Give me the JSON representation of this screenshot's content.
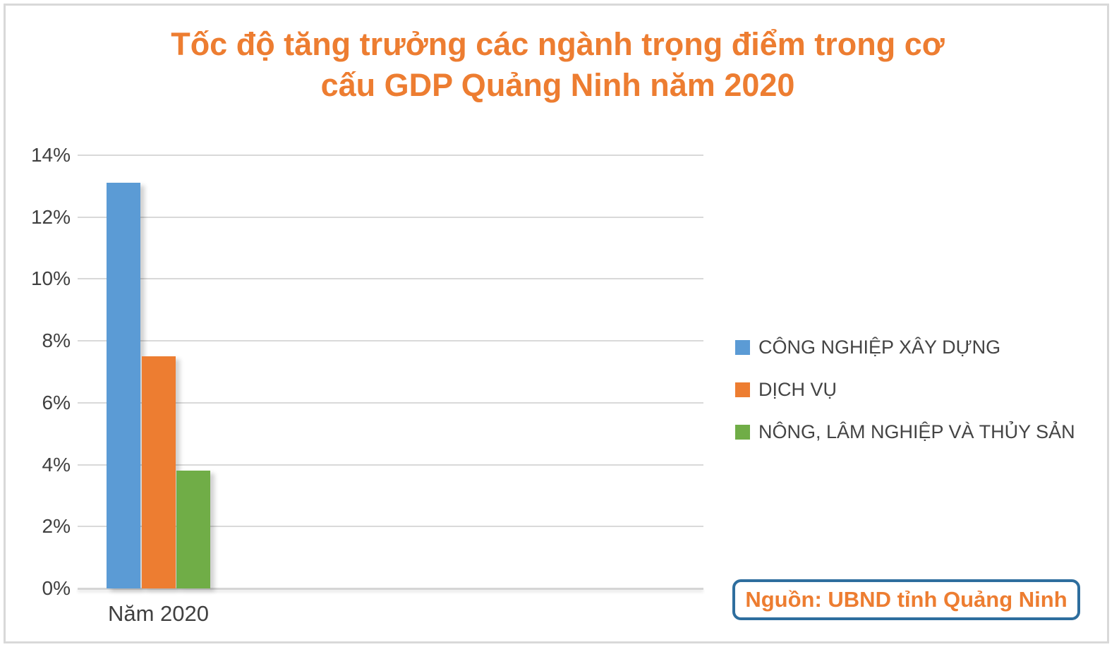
{
  "chart_data": {
    "type": "bar",
    "title": "Tốc độ tăng trưởng các ngành trọng điểm trong cơ cấu GDP Quảng Ninh năm 2020",
    "title_lines": [
      "Tốc độ tăng trưởng các ngành trọng điểm trong cơ",
      "cấu GDP Quảng Ninh năm 2020"
    ],
    "categories": [
      "Năm 2020"
    ],
    "series": [
      {
        "name": "CÔNG NGHIỆP XÂY DỰNG",
        "color": "#5B9BD5",
        "values": [
          13.1
        ]
      },
      {
        "name": "DỊCH VỤ",
        "color": "#ED7D31",
        "values": [
          7.5
        ]
      },
      {
        "name": "NÔNG, LÂM NGHIỆP VÀ THỦY SẢN",
        "color": "#70AD47",
        "values": [
          3.8
        ]
      }
    ],
    "xlabel": "",
    "ylabel": "",
    "ylim": [
      0,
      14
    ],
    "ytick_step": 2,
    "yticks": [
      "0%",
      "2%",
      "4%",
      "6%",
      "8%",
      "10%",
      "12%",
      "14%"
    ],
    "grid": true,
    "legend_position": "right"
  },
  "source_note": {
    "text": "Nguồn: UBND tỉnh Quảng Ninh"
  },
  "colors": {
    "title_text": "#ED7D31",
    "axis_text": "#404040",
    "gridline": "#D9D9D9",
    "frame_border": "#D9D9D9",
    "source_border": "#2E6E9E",
    "source_text": "#ED7D31"
  }
}
